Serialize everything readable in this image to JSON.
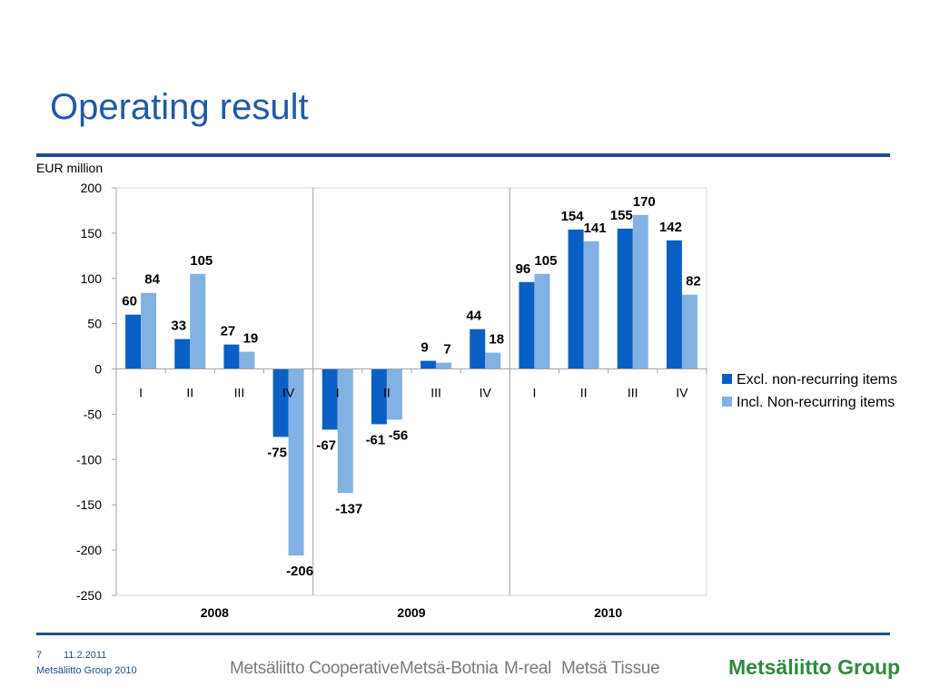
{
  "slide": {
    "title": "Operating result",
    "footer_page": "7",
    "footer_date": "11.2.2011",
    "footer_copyright": "Metsäliitto Group 2010",
    "brands": [
      "Metsäliitto Cooperative",
      "Metsä-Botnia",
      "M-real",
      "Metsä Tissue"
    ],
    "group_logo": "Metsäliitto Group"
  },
  "colors": {
    "title": "#1f5aa6",
    "rule": "#1f4e8c",
    "series_excl": "#0a5fc4",
    "series_incl": "#82b1e4",
    "logo_green": "#2e8b3c"
  },
  "chart_data": {
    "type": "bar",
    "ylabel": "EUR million",
    "ylim": [
      -250,
      200
    ],
    "yticks": [
      200,
      150,
      100,
      50,
      0,
      -50,
      -100,
      -150,
      -200,
      -250
    ],
    "categories": [
      "I",
      "II",
      "III",
      "IV",
      "I",
      "II",
      "III",
      "IV",
      "I",
      "II",
      "III",
      "IV"
    ],
    "groups": [
      "2008",
      "2009",
      "2010"
    ],
    "series": [
      {
        "name": "Excl. non-recurring items",
        "values": [
          60,
          33,
          27,
          -75,
          -67,
          -61,
          9,
          44,
          96,
          154,
          155,
          142
        ]
      },
      {
        "name": "Incl. Non-recurring items",
        "values": [
          84,
          105,
          19,
          -206,
          -137,
          -56,
          7,
          18,
          105,
          141,
          170,
          82
        ]
      }
    ],
    "legend": "right",
    "grid": false
  }
}
